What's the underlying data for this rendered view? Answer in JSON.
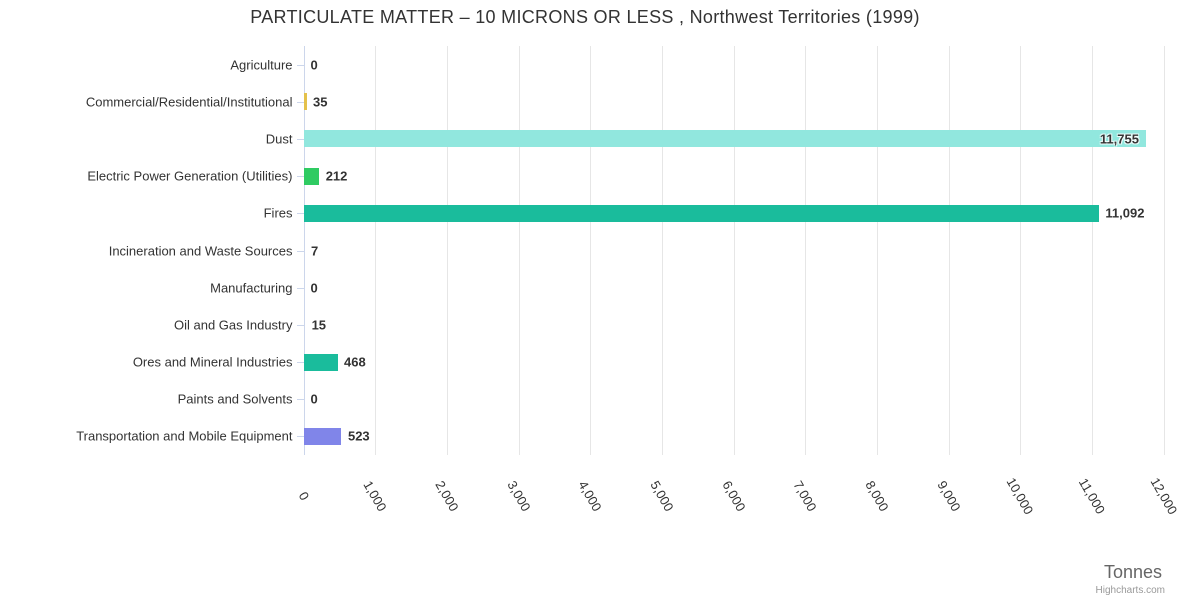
{
  "chart_data": {
    "type": "bar",
    "orientation": "horizontal",
    "title": "PARTICULATE MATTER – 10 MICRONS OR LESS , Northwest Territories (1999)",
    "xlabel": "Tonnes",
    "ylabel": "",
    "categories": [
      "Agriculture",
      "Commercial/Residential/Institutional",
      "Dust",
      "Electric Power Generation (Utilities)",
      "Fires",
      "Incineration and Waste Sources",
      "Manufacturing",
      "Oil and Gas Industry",
      "Ores and Mineral Industries",
      "Paints and Solvents",
      "Transportation and Mobile Equipment"
    ],
    "values": [
      0,
      35,
      11755,
      212,
      11092,
      7,
      0,
      15,
      468,
      0,
      523
    ],
    "value_labels": [
      "0",
      "35",
      "11,755",
      "212",
      "11,092",
      "7",
      "0",
      "15",
      "468",
      "0",
      "523"
    ],
    "bar_colors": [
      null,
      "#e4c14b",
      "#91e7de",
      "#2fcb62",
      "#1abc9c",
      null,
      null,
      null,
      "#1abc9c",
      null,
      "#8085e9"
    ],
    "xlim": [
      0,
      12000
    ],
    "tick_interval": 1000,
    "x_tick_labels": [
      "0",
      "1,000",
      "2,000",
      "3,000",
      "4,000",
      "5,000",
      "6,000",
      "7,000",
      "8,000",
      "9,000",
      "10,000",
      "11,000",
      "12,000"
    ],
    "grid": true,
    "legend": false
  },
  "footer": {
    "credits": "Highcharts.com"
  },
  "style": {
    "background": "#ffffff",
    "axis_line_color": "#ccd6eb",
    "grid_line_color": "#e6e6e6",
    "title_color": "#333333",
    "label_color": "#333333",
    "value_label_color": "#333333",
    "axis_title_color": "#666666",
    "credits_color": "#999999"
  }
}
